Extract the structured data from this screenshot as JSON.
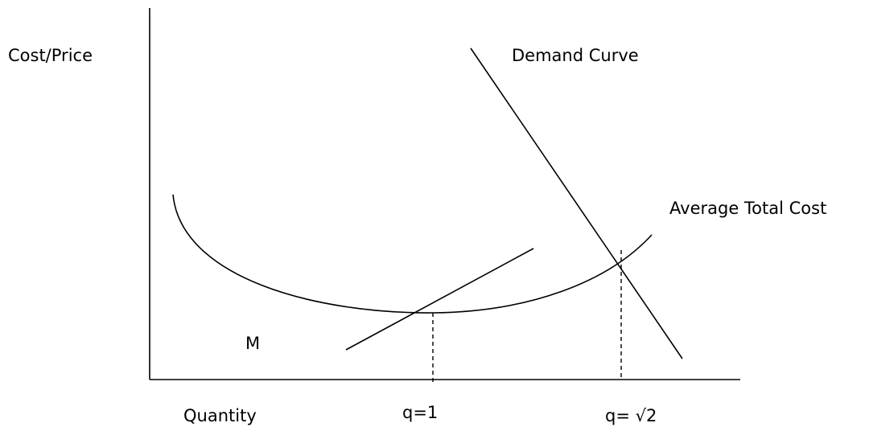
{
  "axes": {
    "y_label": "Cost/Price",
    "x_label": "Quantity"
  },
  "curves": {
    "demand": "Demand Curve",
    "average_total_cost": "Average Total Cost",
    "tangent": "M"
  },
  "markers": [
    "q=1",
    "q= √2"
  ]
}
